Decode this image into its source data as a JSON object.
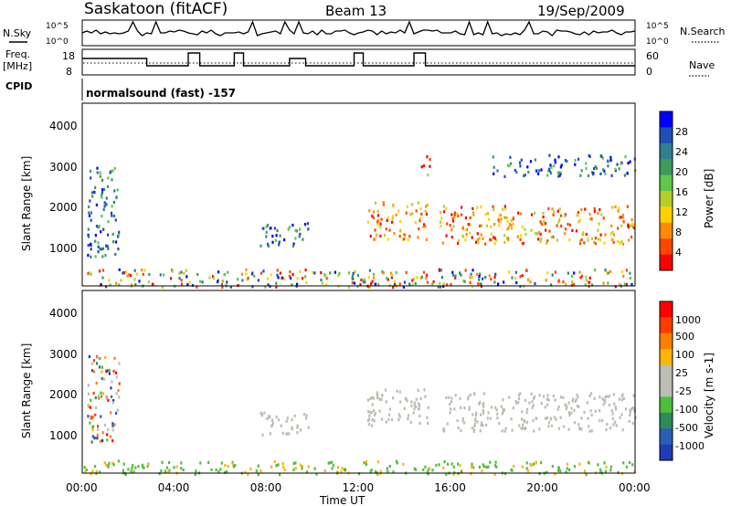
{
  "header": {
    "station": "Saskatoon (fitACF)",
    "beam": "Beam 13",
    "date": "19/Sep/2009"
  },
  "panels": {
    "nsky_label": "N.Sky",
    "nsky_ticks": [
      "10^5",
      "10^0"
    ],
    "nsearch_label": "N.Search",
    "nsearch_ticks": [
      "10^5",
      "10^0"
    ],
    "freq_label": "Freq.",
    "freq_unit": "[MHz]",
    "freq_ticks": [
      "18",
      "8"
    ],
    "nave_label": "Nave",
    "nave_ticks": [
      "60",
      "0"
    ],
    "cpid_label": "CPID",
    "cpid_text": "normalsound (fast) -157"
  },
  "colors": {
    "power_scale": [
      "#0000ff",
      "#1e4fb4",
      "#2f7f92",
      "#3c9c5a",
      "#5ec84a",
      "#b4d028",
      "#ffd200",
      "#ff8c00",
      "#ff4600",
      "#ff0000"
    ],
    "velocity_scale": [
      "#1e3cb4",
      "#2a5fb4",
      "#2f8a5a",
      "#4cbf3c",
      "#bdbdb5",
      "#bdbdb5",
      "#ffb400",
      "#ff8000",
      "#ff3c00",
      "#ff0000"
    ]
  },
  "chart_data": [
    {
      "type": "heatmap",
      "title": "Power",
      "xlabel": "",
      "ylabel": "Slant Range [km]",
      "ylim": [
        180,
        4500
      ],
      "yticks": [
        "1000",
        "2000",
        "3000",
        "4000"
      ],
      "colorbar_label": "Power [dB]",
      "colorbar_ticks": [
        "28",
        "24",
        "20",
        "16",
        "12",
        "8",
        "4"
      ],
      "xlim": [
        0,
        24
      ],
      "echo_regions_hours_km": [
        {
          "t": [
            0.2,
            1.6
          ],
          "r": [
            900,
            3000
          ],
          "level": "low"
        },
        {
          "t": [
            7.7,
            9.8
          ],
          "r": [
            1100,
            1700
          ],
          "level": "low"
        },
        {
          "t": [
            12.3,
            15.0
          ],
          "r": [
            1300,
            2200
          ],
          "level": "high"
        },
        {
          "t": [
            14.7,
            15.1
          ],
          "r": [
            2800,
            3300
          ],
          "level": "high"
        },
        {
          "t": [
            15.5,
            24.0
          ],
          "r": [
            1200,
            2100
          ],
          "level": "high"
        },
        {
          "t": [
            17.8,
            24.0
          ],
          "r": [
            2800,
            3300
          ],
          "level": "low"
        },
        {
          "t": [
            0.0,
            24.0
          ],
          "r": [
            180,
            600
          ],
          "level": "mixed"
        }
      ]
    },
    {
      "type": "heatmap",
      "title": "Velocity",
      "xlabel": "Time UT",
      "ylabel": "Slant Range [km]",
      "ylim": [
        180,
        4500
      ],
      "yticks": [
        "1000",
        "2000",
        "3000",
        "4000"
      ],
      "colorbar_label": "Velocity [m s-1]",
      "colorbar_ticks": [
        "1000",
        "500",
        "100",
        "25",
        "-25",
        "-100",
        "-500",
        "-1000"
      ],
      "xlim": [
        0,
        24
      ],
      "xticks": [
        "00:00",
        "04:00",
        "08:00",
        "12:00",
        "16:00",
        "20:00",
        "00:00"
      ],
      "echo_regions_hours_km": [
        {
          "t": [
            0.2,
            1.6
          ],
          "r": [
            900,
            3000
          ],
          "level": "mixed"
        },
        {
          "t": [
            7.7,
            9.8
          ],
          "r": [
            1100,
            1700
          ],
          "level": "grey"
        },
        {
          "t": [
            12.3,
            15.0
          ],
          "r": [
            1300,
            2200
          ],
          "level": "grey"
        },
        {
          "t": [
            15.5,
            24.0
          ],
          "r": [
            1200,
            2100
          ],
          "level": "grey"
        },
        {
          "t": [
            0.0,
            24.0
          ],
          "r": [
            180,
            500
          ],
          "level": "green"
        }
      ]
    }
  ]
}
